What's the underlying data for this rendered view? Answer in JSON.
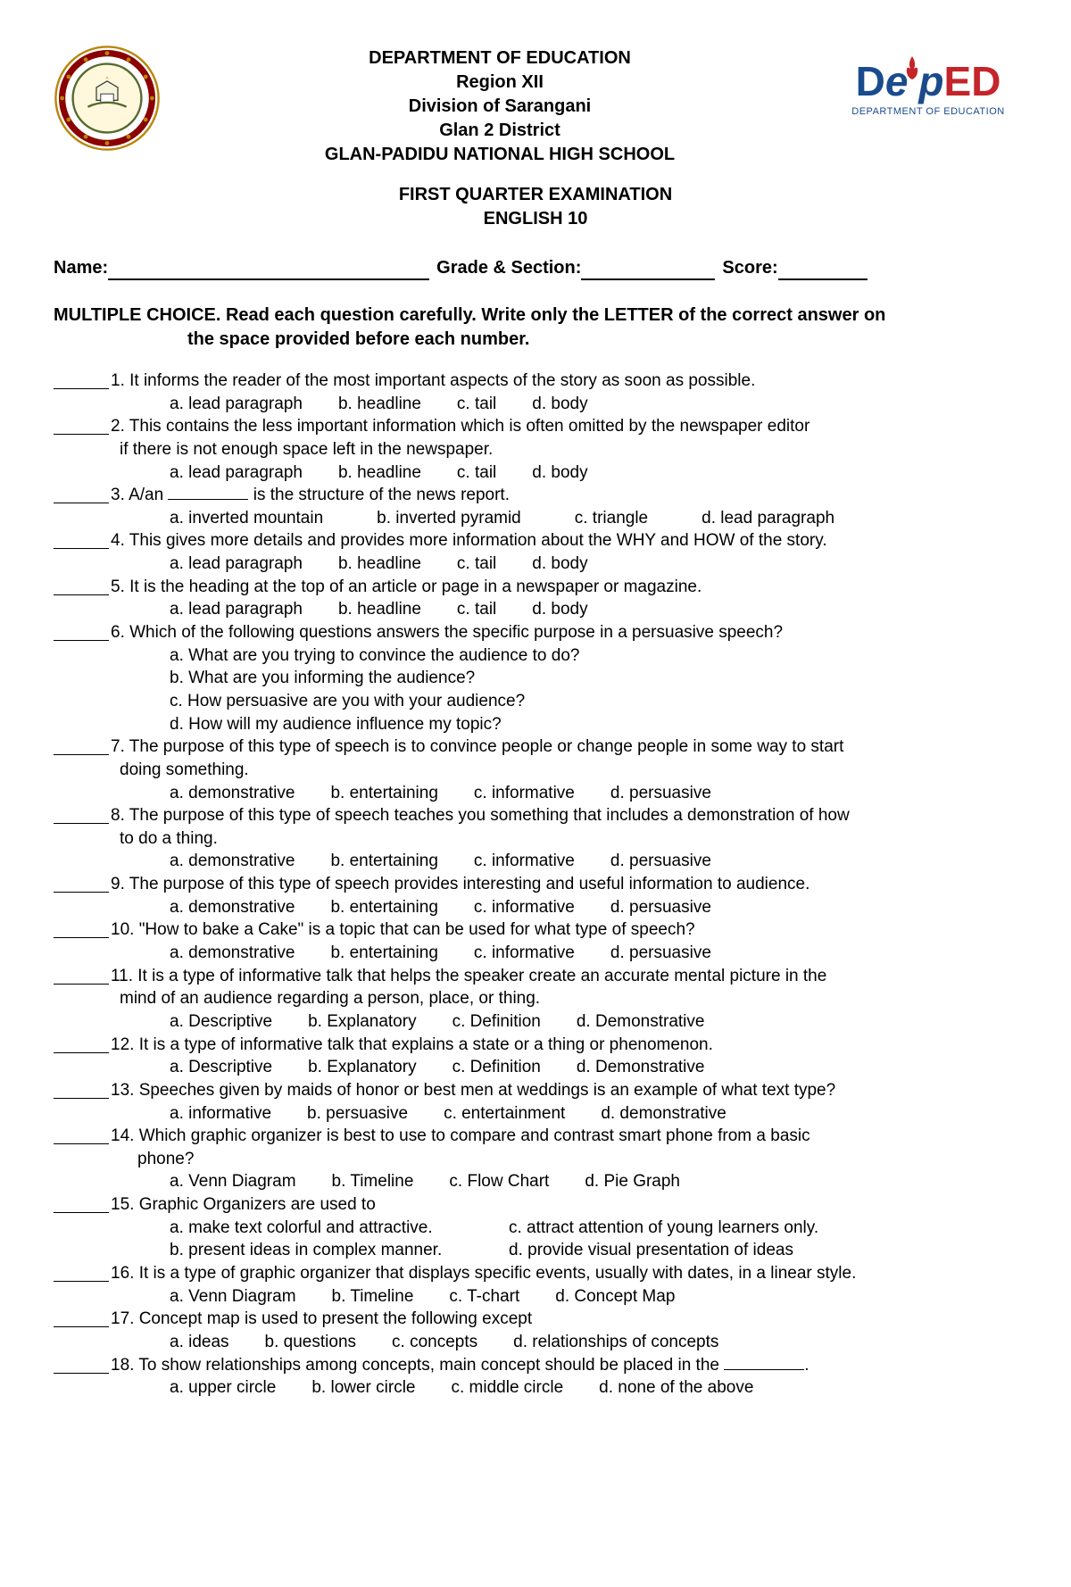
{
  "header": {
    "line1": "DEPARTMENT OF EDUCATION",
    "line2": "Region XII",
    "line3": "Division of Sarangani",
    "line4": "Glan 2 District",
    "line5": "GLAN-PADIDU NATIONAL HIGH SCHOOL"
  },
  "deped": {
    "d": "D",
    "e": "e",
    "p": "p",
    "ed": "ED",
    "sub": "DEPARTMENT OF EDUCATION"
  },
  "exam": {
    "title1": "FIRST QUARTER EXAMINATION",
    "title2": "ENGLISH 10"
  },
  "info": {
    "name_label": "Name:",
    "grade_label": "Grade & Section:",
    "score_label": "Score:"
  },
  "instructions": {
    "line1": "MULTIPLE CHOICE. Read each question carefully. Write only the LETTER of the correct answer on",
    "line2": "the space provided before each number."
  },
  "questions": [
    {
      "n": "1.",
      "text": "It informs the reader of the most important aspects of the story as soon as possible.",
      "choices": [
        "a. lead paragraph",
        "b. headline",
        "c. tail",
        "d. body"
      ],
      "layout": "row"
    },
    {
      "n": "2.",
      "text": "This contains the less important information which is often omitted by the newspaper editor",
      "cont": "if there is not enough space left in the newspaper.",
      "choices": [
        "a. lead paragraph",
        "b. headline",
        "c. tail",
        "d. body"
      ],
      "layout": "row"
    },
    {
      "n": "3.",
      "text": "A/an __________ is the structure of the news report.",
      "choices": [
        "a. inverted mountain",
        "b. inverted pyramid",
        "c. triangle",
        "d. lead paragraph"
      ],
      "layout": "row-wide"
    },
    {
      "n": "4.",
      "text": "This gives more details and provides more information about the WHY and HOW of the story.",
      "choices": [
        "a. lead paragraph",
        "b. headline",
        "c. tail",
        "d. body"
      ],
      "layout": "row"
    },
    {
      "n": "5.",
      "text": "It is the heading at the top of an article or page in a newspaper or magazine.",
      "choices": [
        "a. lead paragraph",
        "b. headline",
        "c. tail",
        "d. body"
      ],
      "layout": "row"
    },
    {
      "n": "6.",
      "text": "Which of the following questions answers the specific purpose in a persuasive speech?",
      "choices": [
        "a. What are you trying to convince the audience to do?",
        "b. What are you informing the audience?",
        "c. How persuasive are you with your audience?",
        "d. How will my audience influence my topic?"
      ],
      "layout": "stack"
    },
    {
      "n": "7.",
      "text": "The purpose of this type of speech is to convince people or change people in some way to start",
      "cont": "doing something.",
      "choices": [
        "a. demonstrative",
        "b. entertaining",
        "c. informative",
        "d. persuasive"
      ],
      "layout": "row"
    },
    {
      "n": "8.",
      "text": "The purpose of this type of speech teaches you something that includes a demonstration of how",
      "cont": "to do a thing.",
      "choices": [
        "a. demonstrative",
        "b. entertaining",
        "c. informative",
        "d. persuasive"
      ],
      "layout": "row"
    },
    {
      "n": "9.",
      "text": "The purpose of this type of speech provides interesting and useful information to audience.",
      "choices": [
        "a. demonstrative",
        "b. entertaining",
        "c. informative",
        "d. persuasive"
      ],
      "layout": "row"
    },
    {
      "n": "10.",
      "text": "\"How to bake a Cake\" is a topic that can be used for what type of speech?",
      "choices": [
        "a. demonstrative",
        "b. entertaining",
        "c. informative",
        "d. persuasive"
      ],
      "layout": "row"
    },
    {
      "n": "11.",
      "text": "It is a type of informative talk that helps the speaker create an accurate mental picture in the",
      "cont": "mind of an audience regarding a person, place, or thing.",
      "choices": [
        "a. Descriptive",
        "b. Explanatory",
        "c. Definition",
        "d. Demonstrative"
      ],
      "layout": "row"
    },
    {
      "n": "12.",
      "text": "It is a type of informative talk that explains a state or a thing or phenomenon.",
      "choices": [
        "a. Descriptive",
        "b. Explanatory",
        "c. Definition",
        "d. Demonstrative"
      ],
      "layout": "row"
    },
    {
      "n": "13.",
      "text": "Speeches given by maids of honor or best men at weddings is an example of what text type?",
      "choices": [
        "a. informative",
        "b. persuasive",
        "c. entertainment",
        "d. demonstrative"
      ],
      "layout": "row"
    },
    {
      "n": "14.",
      "text": "Which graphic organizer is best to use to compare and contrast smart phone from a basic",
      "cont": "phone?",
      "choices": [
        "a. Venn Diagram",
        "b. Timeline",
        "c. Flow Chart",
        "d. Pie Graph"
      ],
      "layout": "row",
      "cont_indent": "small"
    },
    {
      "n": "15.",
      "text": "Graphic Organizers are used to",
      "choices": [
        "a. make text colorful and attractive.",
        "c. attract attention of young learners only.",
        "b. present ideas in complex manner.",
        "d. provide visual presentation of ideas"
      ],
      "layout": "twocol"
    },
    {
      "n": "16.",
      "text": " It is a type of graphic organizer that displays specific events, usually with dates, in a linear style.",
      "choices": [
        "a. Venn Diagram",
        "b. Timeline",
        "c. T-chart",
        "d. Concept Map"
      ],
      "layout": "row"
    },
    {
      "n": "17.",
      "text": "Concept map is used to present the following except",
      "choices": [
        "a. ideas",
        "b. questions",
        "c. concepts",
        "d. relationships of concepts"
      ],
      "layout": "row"
    },
    {
      "n": "18.",
      "text": "To show relationships among concepts, main concept should be placed in the _________.",
      "choices": [
        "a. upper circle",
        "b. lower circle",
        "c. middle circle",
        "d. none of the above"
      ],
      "layout": "row"
    }
  ]
}
